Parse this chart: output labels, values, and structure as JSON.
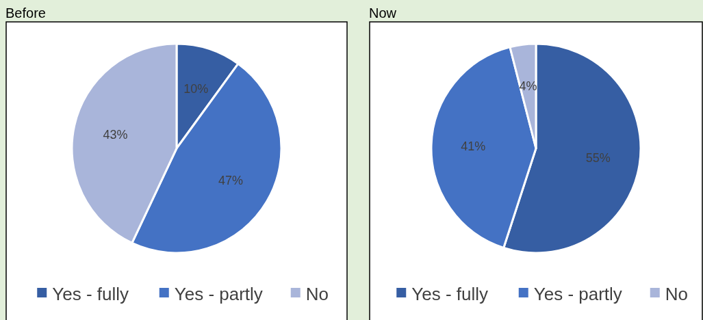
{
  "chart_data": [
    {
      "type": "pie",
      "title": "Before",
      "categories": [
        "Yes - fully",
        "Yes - partly",
        "No"
      ],
      "values": [
        10,
        47,
        43
      ],
      "value_labels": [
        "10%",
        "47%",
        "43%"
      ],
      "colors": [
        "#365ea3",
        "#4472c4",
        "#a9b5da"
      ],
      "legend": "bottom"
    },
    {
      "type": "pie",
      "title": "Now",
      "categories": [
        "Yes - fully",
        "Yes - partly",
        "No"
      ],
      "values": [
        55,
        41,
        4
      ],
      "value_labels": [
        "55%",
        "41%",
        "4%"
      ],
      "colors": [
        "#365ea3",
        "#4472c4",
        "#a9b5da"
      ],
      "legend": "bottom"
    }
  ]
}
